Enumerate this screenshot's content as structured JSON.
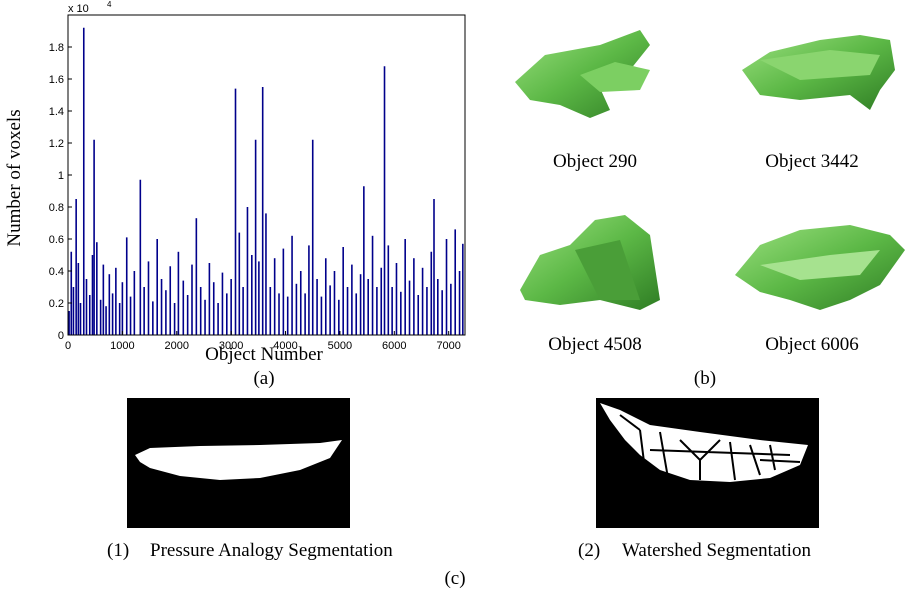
{
  "chart_data": {
    "type": "spike",
    "caption": "(a)",
    "xlabel": "Object Number",
    "ylabel": "Number of voxels",
    "y_multiplier": {
      "base": "x 10",
      "exponent": "4"
    },
    "color": "#00008b",
    "xlim": [
      0,
      7300
    ],
    "xticks": [
      0,
      1000,
      2000,
      3000,
      4000,
      5000,
      6000,
      7000
    ],
    "ylim": [
      0,
      20000
    ],
    "yticks": [
      0,
      {
        "value": 2000,
        "label": "0.2"
      },
      {
        "value": 4000,
        "label": "0.4"
      },
      {
        "value": 6000,
        "label": "0.6"
      },
      {
        "value": 8000,
        "label": "0.8"
      },
      {
        "value": 10000,
        "label": "1"
      },
      {
        "value": 12000,
        "label": "1.2"
      },
      {
        "value": 14000,
        "label": "1.4"
      },
      {
        "value": 16000,
        "label": "1.6"
      },
      {
        "value": 18000,
        "label": "1.8"
      }
    ],
    "x": [
      20,
      60,
      100,
      150,
      190,
      230,
      290,
      340,
      400,
      450,
      480,
      530,
      600,
      650,
      700,
      760,
      820,
      880,
      950,
      1000,
      1080,
      1150,
      1220,
      1330,
      1400,
      1480,
      1560,
      1640,
      1720,
      1800,
      1880,
      1960,
      2030,
      2120,
      2200,
      2280,
      2360,
      2440,
      2520,
      2600,
      2680,
      2760,
      2840,
      2920,
      3000,
      3080,
      3150,
      3220,
      3300,
      3380,
      3450,
      3510,
      3580,
      3640,
      3720,
      3800,
      3880,
      3960,
      4040,
      4120,
      4200,
      4280,
      4360,
      4430,
      4500,
      4580,
      4660,
      4740,
      4820,
      4900,
      4980,
      5060,
      5140,
      5220,
      5300,
      5380,
      5440,
      5520,
      5600,
      5680,
      5760,
      5820,
      5890,
      5960,
      6040,
      6120,
      6200,
      6280,
      6360,
      6440,
      6520,
      6600,
      6680,
      6730,
      6800,
      6880,
      6960,
      7040,
      7120,
      7200,
      7260
    ],
    "values": [
      1500,
      5200,
      3000,
      8500,
      4500,
      2000,
      19200,
      3500,
      2500,
      5000,
      12200,
      5800,
      2200,
      4400,
      1800,
      3800,
      2600,
      4200,
      2000,
      3300,
      6100,
      2400,
      4000,
      9700,
      3000,
      4600,
      2100,
      6000,
      3500,
      2800,
      4300,
      2000,
      5200,
      3400,
      2500,
      4400,
      7300,
      3000,
      2200,
      4500,
      3300,
      2000,
      3900,
      2600,
      3500,
      15400,
      6400,
      3000,
      8000,
      5000,
      12200,
      4600,
      15500,
      7600,
      3000,
      4800,
      2600,
      5400,
      2400,
      6200,
      3200,
      4000,
      2600,
      5600,
      12200,
      3500,
      2400,
      4800,
      3100,
      4000,
      2200,
      5500,
      3000,
      4400,
      2600,
      3800,
      9300,
      3500,
      6200,
      3000,
      4200,
      16800,
      5600,
      3000,
      4500,
      2700,
      6000,
      3400,
      4800,
      2500,
      4200,
      3000,
      5200,
      8500,
      3500,
      2800,
      6000,
      3200,
      6600,
      4000,
      5700
    ]
  },
  "panel_b": {
    "caption": "(b)",
    "objects": [
      {
        "label": "Object 290"
      },
      {
        "label": "Object 3442"
      },
      {
        "label": "Object 4508"
      },
      {
        "label": "Object 6006"
      }
    ]
  },
  "panel_c": {
    "caption": "(c)",
    "items": [
      {
        "number": "(1)",
        "label": "Pressure Analogy Segmentation"
      },
      {
        "number": "(2)",
        "label": "Watershed Segmentation"
      }
    ]
  }
}
